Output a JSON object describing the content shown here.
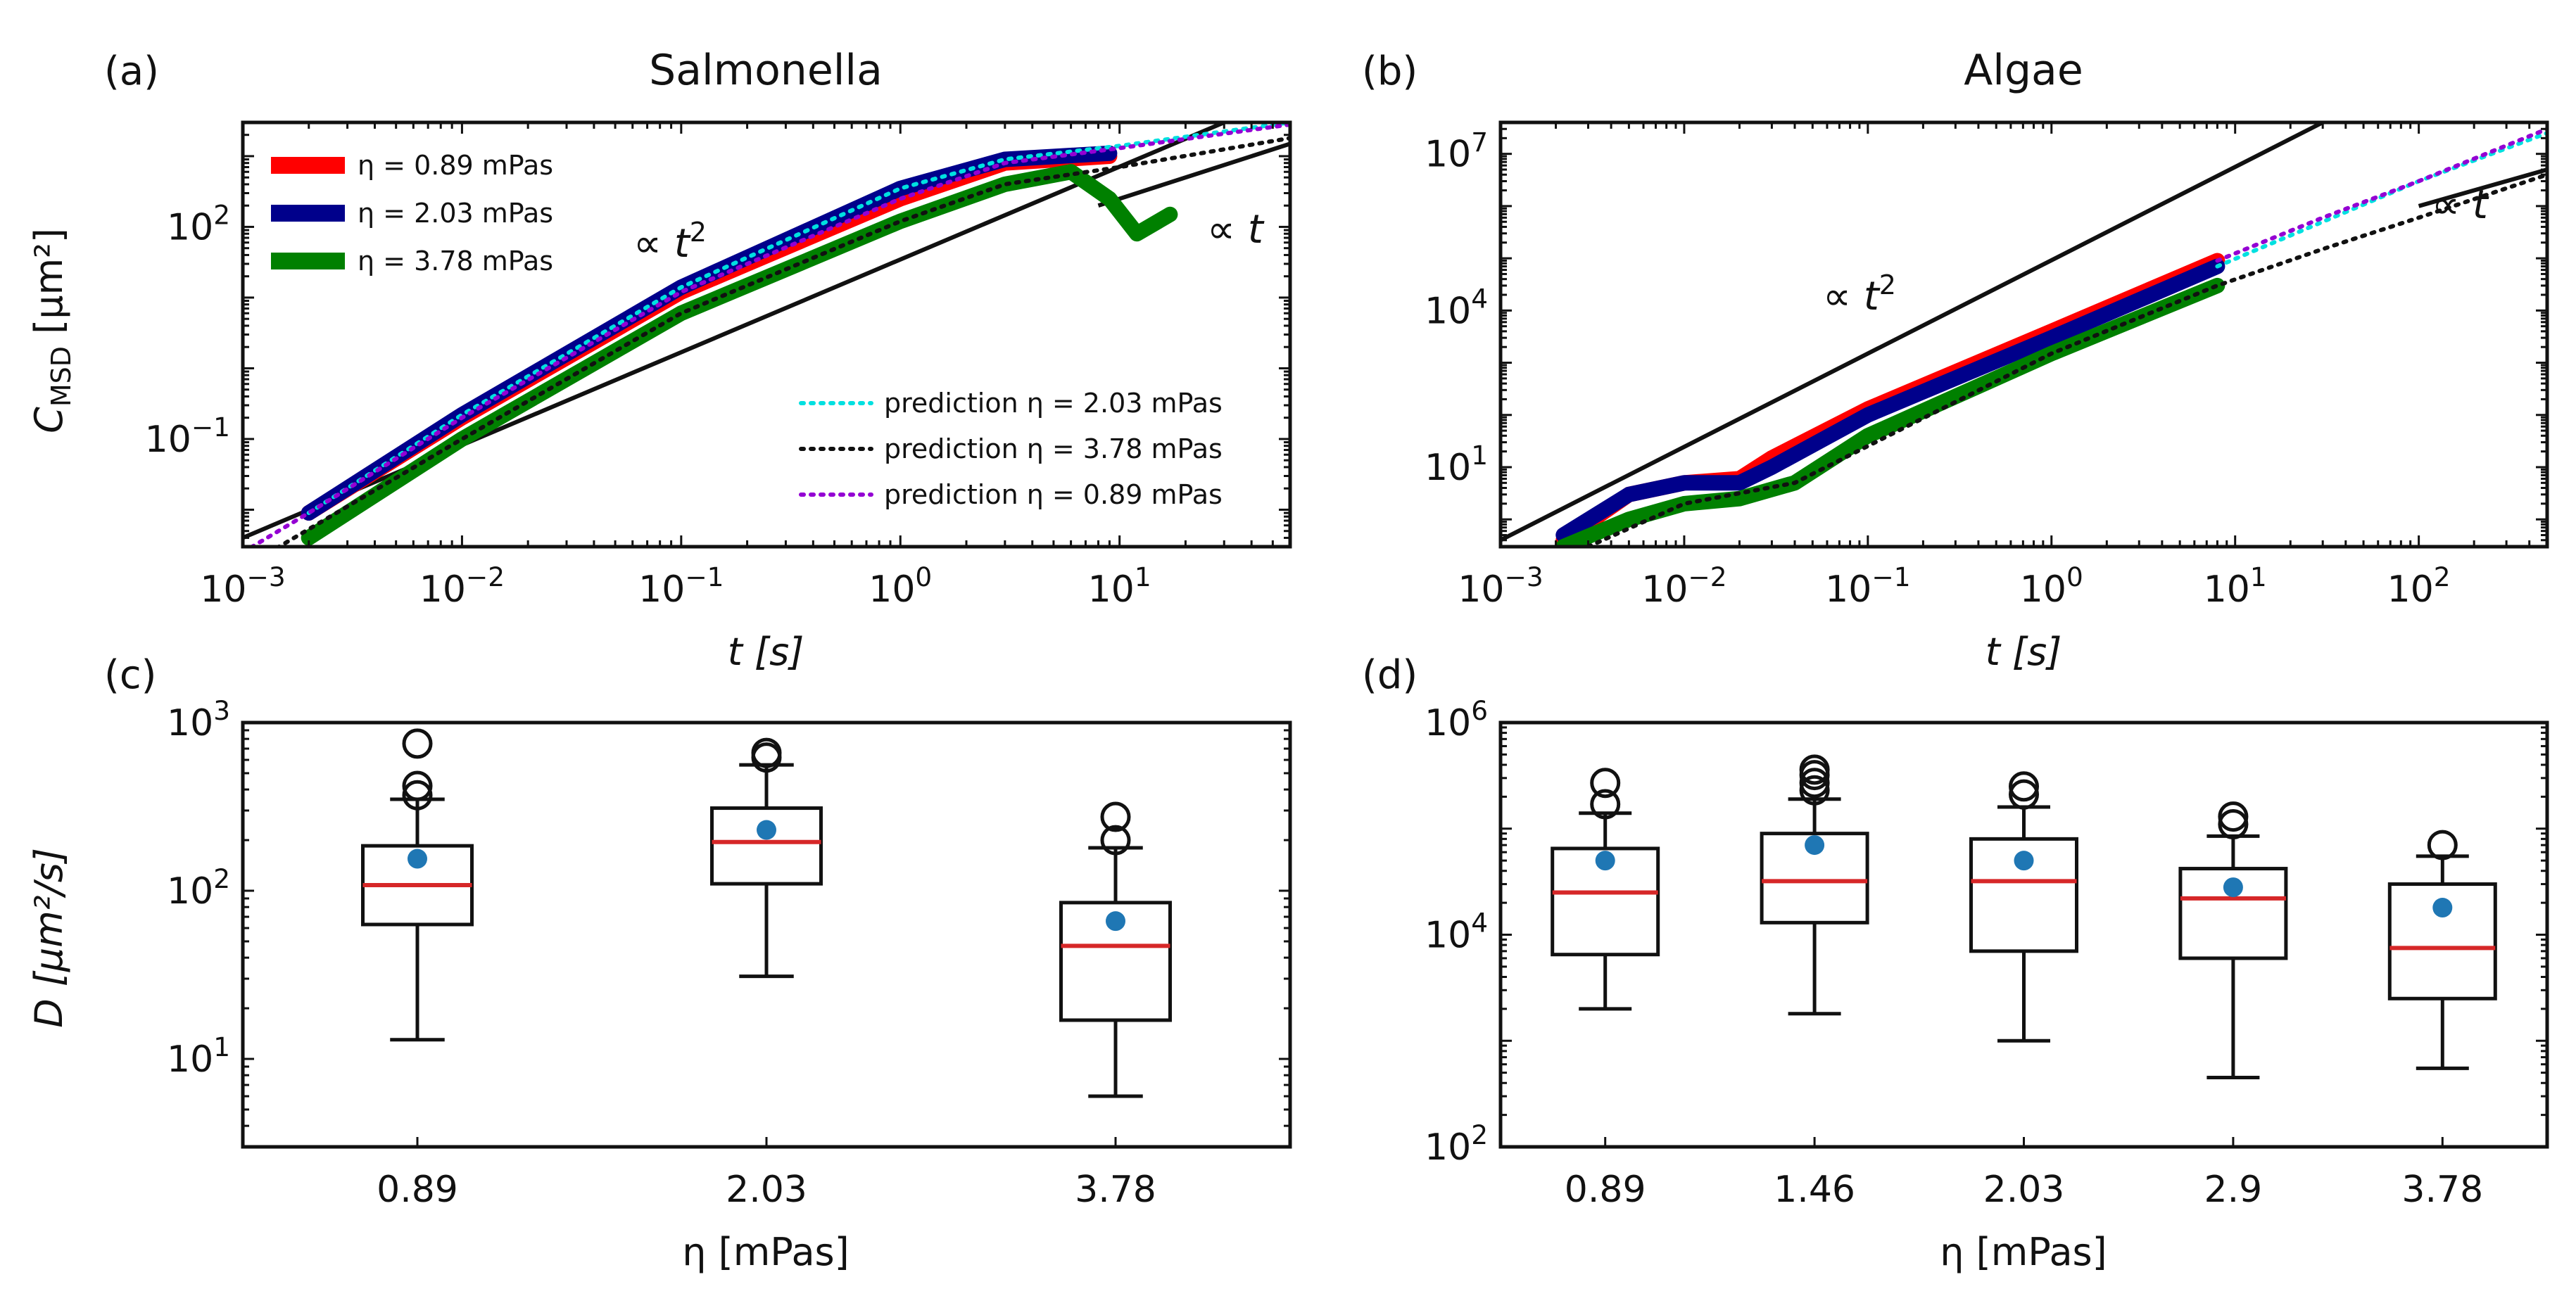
{
  "chart_data": [
    {
      "panel": "(a)",
      "title": "Salmonella",
      "type": "line",
      "xscale": "log",
      "yscale": "log",
      "xlabel": "t [s]",
      "ylabel": "C_MSD [μm²]",
      "xlim": [
        0.001,
        60
      ],
      "ylim": [
        0.003,
        3000
      ],
      "xticks": [
        0.001,
        0.01,
        0.1,
        1,
        10
      ],
      "xticklabels": [
        "10^-3",
        "10^-2",
        "10^-1",
        "10^0",
        "10^1"
      ],
      "yticks": [
        0.1,
        100
      ],
      "yticklabels": [
        "10^-1",
        "10^2"
      ],
      "legend_position": "top-left",
      "series": [
        {
          "name": "η = 0.89 mPas",
          "color": "#ff0000",
          "style": "thick",
          "points": [
            [
              0.002,
              0.009
            ],
            [
              0.01,
              0.2
            ],
            [
              0.1,
              12
            ],
            [
              1,
              250
            ],
            [
              3,
              800
            ],
            [
              9,
              1000
            ]
          ]
        },
        {
          "name": "η = 2.03 mPas",
          "color": "#00008b",
          "style": "thick",
          "points": [
            [
              0.002,
              0.009
            ],
            [
              0.01,
              0.22
            ],
            [
              0.1,
              14
            ],
            [
              1,
              350
            ],
            [
              3,
              900
            ],
            [
              9,
              1100
            ]
          ]
        },
        {
          "name": "η = 3.78 mPas",
          "color": "#008000",
          "style": "thick",
          "points": [
            [
              0.002,
              0.004
            ],
            [
              0.01,
              0.1
            ],
            [
              0.1,
              6
            ],
            [
              1,
              120
            ],
            [
              3,
              400
            ],
            [
              6,
              600
            ],
            [
              9,
              250
            ],
            [
              12,
              80
            ],
            [
              17,
              150
            ]
          ]
        }
      ],
      "predictions": [
        {
          "name": "prediction η = 2.03 mPas",
          "color": "#00e0e0",
          "style": "dotted",
          "points": [
            [
              0.002,
              0.009
            ],
            [
              0.01,
              0.22
            ],
            [
              0.1,
              14
            ],
            [
              1,
              350
            ],
            [
              3,
              900
            ],
            [
              10,
              1400
            ],
            [
              60,
              3000
            ]
          ]
        },
        {
          "name": "prediction η = 3.78 mPas",
          "color": "#111111",
          "style": "dotted",
          "points": [
            [
              0.001,
              0.0015
            ],
            [
              0.01,
              0.1
            ],
            [
              0.1,
              6
            ],
            [
              1,
              120
            ],
            [
              3,
              400
            ],
            [
              10,
              700
            ],
            [
              60,
              1800
            ]
          ]
        },
        {
          "name": "prediction η = 0.89 mPas",
          "color": "#9400d3",
          "style": "dotted",
          "points": [
            [
              0.001,
              0.0025
            ],
            [
              0.002,
              0.009
            ],
            [
              0.01,
              0.2
            ],
            [
              0.1,
              12
            ],
            [
              1,
              250
            ],
            [
              3,
              800
            ],
            [
              10,
              1300
            ],
            [
              60,
              2800
            ]
          ]
        }
      ],
      "guides": [
        {
          "label": "∝ t²",
          "points": [
            [
              0.001,
              0.004
            ],
            [
              30,
              3000
            ]
          ]
        },
        {
          "label": "∝ t",
          "points": [
            [
              8,
              200
            ],
            [
              60,
              1500
            ]
          ]
        }
      ]
    },
    {
      "panel": "(b)",
      "title": "Algae",
      "type": "line",
      "xscale": "log",
      "yscale": "log",
      "xlabel": "t [s]",
      "ylabel": "",
      "xlim": [
        0.001,
        500
      ],
      "ylim": [
        0.3,
        40000000
      ],
      "xticks": [
        0.001,
        0.01,
        0.1,
        1,
        10,
        100
      ],
      "xticklabels": [
        "10^-3",
        "10^-2",
        "10^-1",
        "10^0",
        "10^1",
        "10^2"
      ],
      "yticks": [
        10,
        10000,
        10000000
      ],
      "yticklabels": [
        "10^1",
        "10^4",
        "10^7"
      ],
      "series": [
        {
          "name": "η = 0.89 mPas",
          "color": "#ff0000",
          "style": "thick",
          "points": [
            [
              0.0022,
              0.4
            ],
            [
              0.005,
              3
            ],
            [
              0.01,
              5
            ],
            [
              0.02,
              6
            ],
            [
              0.03,
              15
            ],
            [
              0.1,
              130
            ],
            [
              1,
              4000
            ],
            [
              8,
              90000
            ]
          ]
        },
        {
          "name": "η = 2.03 mPas",
          "color": "#00008b",
          "style": "thick",
          "points": [
            [
              0.0022,
              0.5
            ],
            [
              0.005,
              3
            ],
            [
              0.01,
              5
            ],
            [
              0.02,
              5
            ],
            [
              0.03,
              10
            ],
            [
              0.1,
              100
            ],
            [
              1,
              3000
            ],
            [
              8,
              70000
            ]
          ]
        },
        {
          "name": "η = 3.78 mPas",
          "color": "#008000",
          "style": "thick",
          "points": [
            [
              0.0022,
              0.3
            ],
            [
              0.005,
              1
            ],
            [
              0.01,
              2
            ],
            [
              0.02,
              2.5
            ],
            [
              0.04,
              5
            ],
            [
              0.1,
              40
            ],
            [
              1,
              1500
            ],
            [
              8,
              30000
            ]
          ]
        }
      ],
      "predictions": [
        {
          "name": "prediction η = 2.03 mPas",
          "color": "#00e0e0",
          "style": "dotted",
          "points": [
            [
              8,
              70000
            ],
            [
              30,
              500000
            ],
            [
              100,
              3000000
            ],
            [
              500,
              25000000
            ]
          ]
        },
        {
          "name": "prediction η = 3.78 mPas",
          "color": "#111111",
          "style": "dotted",
          "points": [
            [
              0.003,
              0.3
            ],
            [
              0.01,
              2
            ],
            [
              0.04,
              5
            ],
            [
              1,
              1500
            ],
            [
              8,
              30000
            ],
            [
              30,
              150000
            ],
            [
              100,
              600000
            ],
            [
              500,
              4000000
            ]
          ]
        },
        {
          "name": "prediction η = 0.89 mPas",
          "color": "#9400d3",
          "style": "dotted",
          "points": [
            [
              8,
              90000
            ],
            [
              30,
              600000
            ],
            [
              100,
              3000000
            ],
            [
              500,
              30000000
            ]
          ]
        }
      ],
      "guides": [
        {
          "label": "∝ t²",
          "points": [
            [
              0.001,
              0.4
            ],
            [
              30,
              40000000
            ]
          ]
        },
        {
          "label": "∝ t",
          "points": [
            [
              100,
              1000000
            ],
            [
              500,
              5000000
            ]
          ]
        }
      ]
    },
    {
      "panel": "(c)",
      "title": "",
      "type": "box",
      "yscale": "log",
      "xlabel": "η [mPas]",
      "ylabel": "D [μm²/s]",
      "ylim": [
        3,
        1000
      ],
      "yticks": [
        10,
        100,
        1000
      ],
      "yticklabels": [
        "10^1",
        "10^2",
        "10^3"
      ],
      "categories": [
        "0.89",
        "2.03",
        "3.78"
      ],
      "boxes": [
        {
          "q1": 63,
          "median": 108,
          "q3": 185,
          "whisker_low": 13,
          "whisker_high": 350,
          "mean": 155,
          "outliers": [
            370,
            420,
            750
          ]
        },
        {
          "q1": 110,
          "median": 195,
          "q3": 310,
          "whisker_low": 31,
          "whisker_high": 560,
          "mean": 230,
          "outliers": [
            620,
            660
          ]
        },
        {
          "q1": 17,
          "median": 47,
          "q3": 85,
          "whisker_low": 6,
          "whisker_high": 180,
          "mean": 66,
          "outliers": [
            200,
            275
          ]
        }
      ]
    },
    {
      "panel": "(d)",
      "title": "",
      "type": "box",
      "yscale": "log",
      "xlabel": "η [mPas]",
      "ylabel": "",
      "ylim": [
        100,
        1000000
      ],
      "yticks": [
        100,
        10000,
        1000000
      ],
      "yticklabels": [
        "10^2",
        "10^4",
        "10^6"
      ],
      "categories": [
        "0.89",
        "1.46",
        "2.03",
        "2.9",
        "3.78"
      ],
      "boxes": [
        {
          "q1": 6500,
          "median": 25000,
          "q3": 65000,
          "whisker_low": 2000,
          "whisker_high": 140000,
          "mean": 50000,
          "outliers": [
            170000,
            270000
          ]
        },
        {
          "q1": 13000,
          "median": 32000,
          "q3": 90000,
          "whisker_low": 1800,
          "whisker_high": 190000,
          "mean": 70000,
          "outliers": [
            230000,
            270000,
            320000,
            360000
          ]
        },
        {
          "q1": 7000,
          "median": 32000,
          "q3": 80000,
          "whisker_low": 1000,
          "whisker_high": 160000,
          "mean": 50000,
          "outliers": [
            210000,
            250000
          ]
        },
        {
          "q1": 6000,
          "median": 22000,
          "q3": 42000,
          "whisker_low": 450,
          "whisker_high": 85000,
          "mean": 28000,
          "outliers": [
            110000,
            130000
          ]
        },
        {
          "q1": 2500,
          "median": 7500,
          "q3": 30000,
          "whisker_low": 550,
          "whisker_high": 55000,
          "mean": 18000,
          "outliers": [
            70000
          ]
        }
      ]
    }
  ],
  "colors": {
    "median": "#d62728",
    "mean": "#1f77b4",
    "axes": "#111111"
  }
}
